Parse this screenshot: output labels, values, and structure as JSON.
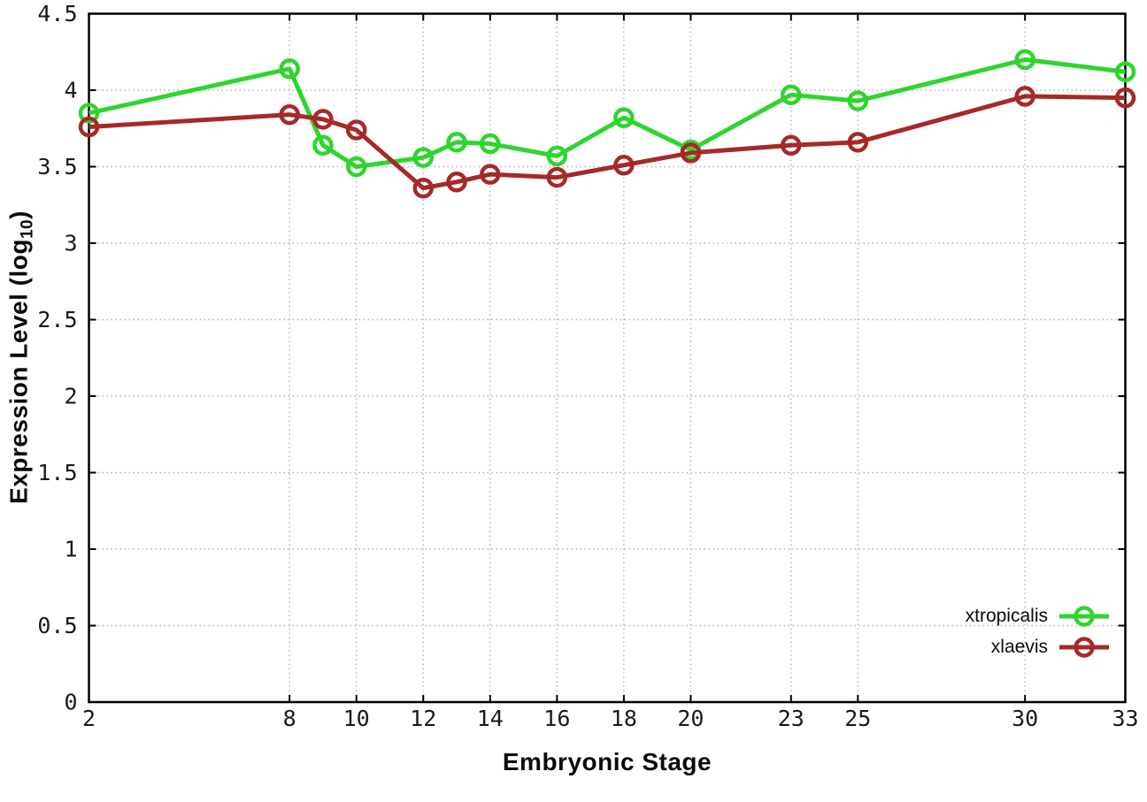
{
  "chart_data": {
    "type": "line",
    "title": "",
    "xlabel": "Embryonic Stage",
    "ylabel": {
      "text": "Expression Level (log",
      "subscript": "10",
      "suffix": ")"
    },
    "x": [
      2,
      8,
      9,
      10,
      12,
      13,
      14,
      16,
      18,
      20,
      23,
      25,
      30,
      33
    ],
    "x_ticks": [
      2,
      8,
      10,
      12,
      14,
      16,
      18,
      20,
      23,
      25,
      30,
      33
    ],
    "x_tick_labels": [
      "2",
      "8",
      "10",
      "12",
      "14",
      "16",
      "18",
      "20",
      "23",
      "25",
      "30",
      "33"
    ],
    "y_ticks": [
      0,
      0.5,
      1,
      1.5,
      2,
      2.5,
      3,
      3.5,
      4,
      4.5
    ],
    "y_tick_labels": [
      "0",
      "0.5",
      "1",
      "1.5",
      "2",
      "2.5",
      "3",
      "3.5",
      "4",
      "4.5"
    ],
    "xlim": [
      2,
      33
    ],
    "ylim": [
      0,
      4.5
    ],
    "grid": true,
    "legend_position": "bottom-right",
    "marker": "open-circle",
    "series": [
      {
        "name": "xtropicalis",
        "color": "#2ed52e",
        "values": [
          3.85,
          4.14,
          3.64,
          3.5,
          3.56,
          3.66,
          3.65,
          3.57,
          3.82,
          3.61,
          3.97,
          3.93,
          4.2,
          4.12
        ]
      },
      {
        "name": "xlaevis",
        "color": "#a62929",
        "values": [
          3.76,
          3.84,
          3.81,
          3.74,
          3.36,
          3.4,
          3.45,
          3.43,
          3.51,
          3.59,
          3.64,
          3.66,
          3.96,
          3.95
        ]
      }
    ],
    "axis_color": "#000000",
    "grid_color": "#b3b3b3",
    "tick_label_color": "#1a1a1a"
  }
}
